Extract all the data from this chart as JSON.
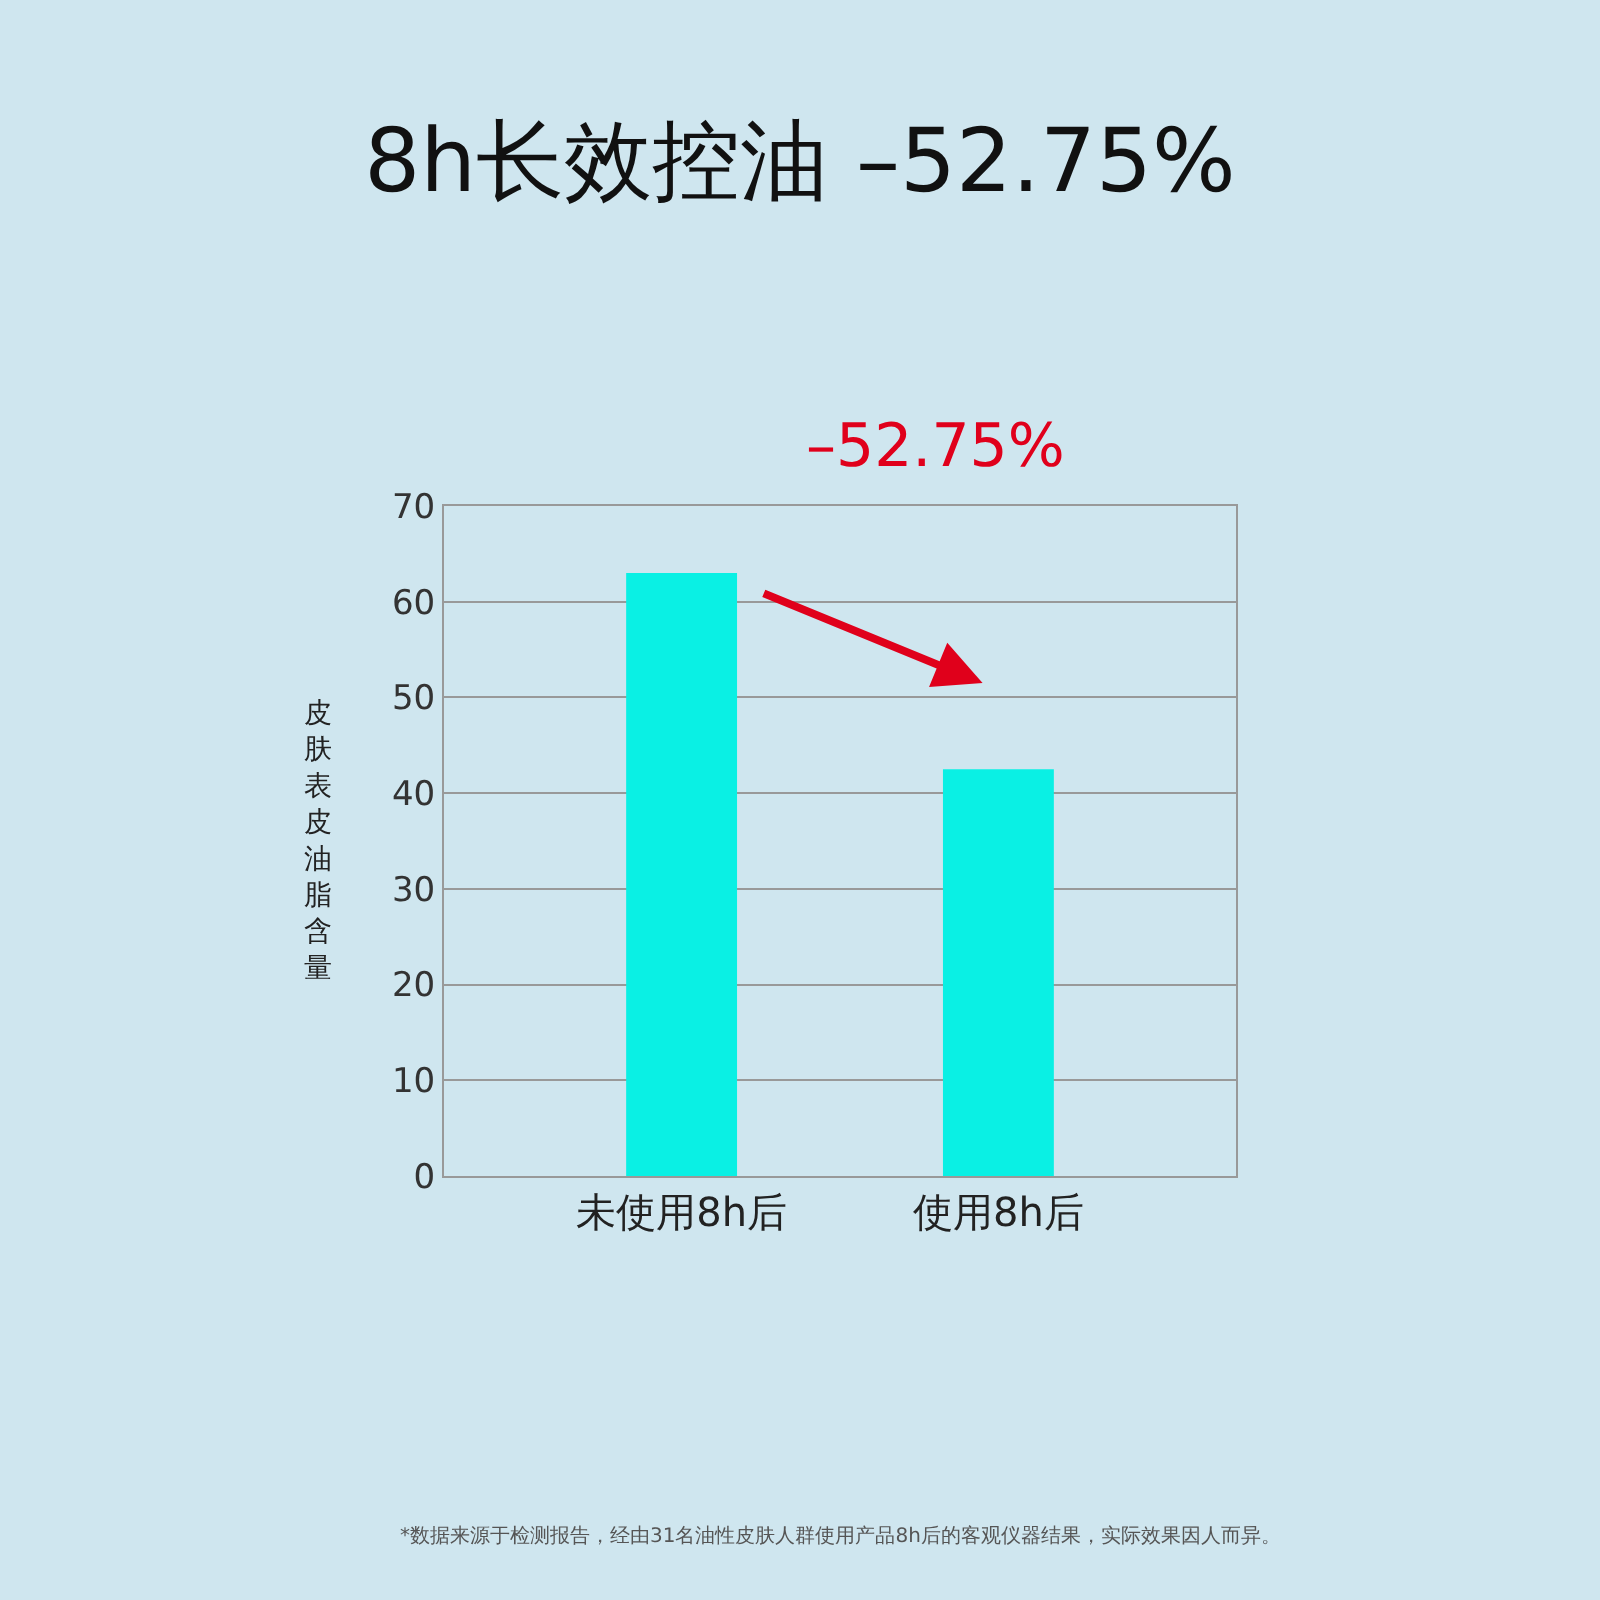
{
  "chart_data": {
    "type": "bar",
    "title": "8h长效控油 –52.75%",
    "ylabel": "皮肤表皮油脂含量",
    "categories": [
      "未使用8h后",
      "使用8h后"
    ],
    "values": [
      63,
      42.5
    ],
    "color": "#0af0e4",
    "ylim": [
      0,
      70
    ],
    "yticks": [
      0,
      10,
      20,
      30,
      40,
      50,
      60,
      70
    ],
    "grid": "y",
    "annotations": [
      "–52.75%",
      "*数据来源于检测报告，经由31名油性皮肤人群使用产品8h后的客观仪器结果，实际效果因人而异。"
    ]
  }
}
